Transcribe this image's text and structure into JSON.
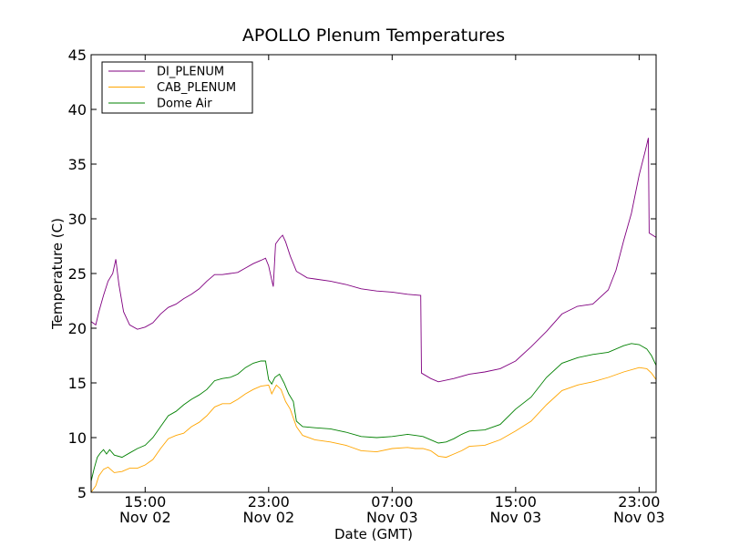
{
  "chart_data": {
    "type": "line",
    "title": "APOLLO Plenum Temperatures",
    "xlabel": "Date (GMT)",
    "ylabel": "Temperature (C)",
    "xlim": [
      11.5,
      48.1
    ],
    "ylim": [
      5,
      45
    ],
    "x_unit": "hours since Nov 02 00:00 GMT",
    "legend_position": "top-left",
    "yticks": [
      {
        "value": 5,
        "label": "5"
      },
      {
        "value": 10,
        "label": "10"
      },
      {
        "value": 15,
        "label": "15"
      },
      {
        "value": 20,
        "label": "20"
      },
      {
        "value": 25,
        "label": "25"
      },
      {
        "value": 30,
        "label": "30"
      },
      {
        "value": 35,
        "label": "35"
      },
      {
        "value": 40,
        "label": "40"
      },
      {
        "value": 45,
        "label": "45"
      }
    ],
    "xticks": [
      {
        "value": 15,
        "label": "15:00",
        "sublabel": "Nov 02"
      },
      {
        "value": 23,
        "label": "23:00",
        "sublabel": "Nov 02"
      },
      {
        "value": 31,
        "label": "07:00",
        "sublabel": "Nov 03"
      },
      {
        "value": 39,
        "label": "15:00",
        "sublabel": "Nov 03"
      },
      {
        "value": 47,
        "label": "23:00",
        "sublabel": "Nov 03"
      }
    ],
    "series": [
      {
        "name": "DI_PLENUM",
        "color": "#800080",
        "points": [
          [
            11.5,
            20.6
          ],
          [
            11.8,
            20.3
          ],
          [
            12.0,
            21.5
          ],
          [
            12.3,
            23.0
          ],
          [
            12.6,
            24.3
          ],
          [
            12.9,
            25.0
          ],
          [
            13.1,
            26.3
          ],
          [
            13.3,
            24.0
          ],
          [
            13.6,
            21.5
          ],
          [
            14.0,
            20.3
          ],
          [
            14.5,
            19.9
          ],
          [
            15.0,
            20.1
          ],
          [
            15.5,
            20.5
          ],
          [
            16.0,
            21.3
          ],
          [
            16.5,
            21.9
          ],
          [
            17.0,
            22.2
          ],
          [
            17.5,
            22.7
          ],
          [
            18.0,
            23.1
          ],
          [
            18.5,
            23.6
          ],
          [
            19.0,
            24.3
          ],
          [
            19.5,
            24.9
          ],
          [
            20.0,
            24.9
          ],
          [
            20.5,
            25.0
          ],
          [
            21.0,
            25.1
          ],
          [
            21.5,
            25.5
          ],
          [
            22.0,
            25.9
          ],
          [
            22.5,
            26.2
          ],
          [
            22.8,
            26.4
          ],
          [
            23.0,
            25.7
          ],
          [
            23.2,
            24.4
          ],
          [
            23.3,
            23.8
          ],
          [
            23.45,
            27.7
          ],
          [
            23.7,
            28.2
          ],
          [
            23.9,
            28.5
          ],
          [
            24.1,
            27.9
          ],
          [
            24.4,
            26.6
          ],
          [
            24.8,
            25.2
          ],
          [
            25.5,
            24.6
          ],
          [
            26.0,
            24.5
          ],
          [
            27.0,
            24.3
          ],
          [
            28.0,
            24.0
          ],
          [
            29.0,
            23.6
          ],
          [
            30.0,
            23.4
          ],
          [
            31.0,
            23.3
          ],
          [
            32.0,
            23.1
          ],
          [
            32.85,
            23.0
          ],
          [
            32.9,
            15.9
          ],
          [
            33.5,
            15.4
          ],
          [
            34.0,
            15.1
          ],
          [
            35.0,
            15.4
          ],
          [
            36.0,
            15.8
          ],
          [
            37.0,
            16.0
          ],
          [
            38.0,
            16.3
          ],
          [
            39.0,
            17.0
          ],
          [
            40.0,
            18.3
          ],
          [
            41.0,
            19.7
          ],
          [
            42.0,
            21.3
          ],
          [
            43.0,
            22.0
          ],
          [
            44.0,
            22.2
          ],
          [
            45.0,
            23.5
          ],
          [
            45.5,
            25.3
          ],
          [
            46.0,
            28.0
          ],
          [
            46.5,
            30.5
          ],
          [
            47.0,
            34.0
          ],
          [
            47.4,
            36.2
          ],
          [
            47.6,
            37.4
          ],
          [
            47.65,
            28.7
          ],
          [
            48.1,
            28.3
          ]
        ]
      },
      {
        "name": "CAB_PLENUM",
        "color": "#ffa500",
        "points": [
          [
            11.5,
            5.0
          ],
          [
            11.8,
            5.6
          ],
          [
            12.0,
            6.5
          ],
          [
            12.3,
            7.1
          ],
          [
            12.6,
            7.3
          ],
          [
            13.0,
            6.8
          ],
          [
            13.5,
            6.9
          ],
          [
            14.0,
            7.2
          ],
          [
            14.5,
            7.2
          ],
          [
            15.0,
            7.5
          ],
          [
            15.5,
            8.0
          ],
          [
            16.0,
            9.0
          ],
          [
            16.5,
            9.9
          ],
          [
            17.0,
            10.2
          ],
          [
            17.5,
            10.4
          ],
          [
            18.0,
            11.0
          ],
          [
            18.5,
            11.4
          ],
          [
            19.0,
            12.0
          ],
          [
            19.5,
            12.8
          ],
          [
            20.0,
            13.1
          ],
          [
            20.5,
            13.1
          ],
          [
            21.0,
            13.5
          ],
          [
            21.5,
            14.0
          ],
          [
            22.0,
            14.4
          ],
          [
            22.5,
            14.7
          ],
          [
            23.0,
            14.8
          ],
          [
            23.2,
            14.0
          ],
          [
            23.5,
            14.8
          ],
          [
            23.8,
            14.4
          ],
          [
            24.1,
            13.3
          ],
          [
            24.4,
            12.6
          ],
          [
            24.8,
            11.0
          ],
          [
            25.2,
            10.2
          ],
          [
            26.0,
            9.8
          ],
          [
            27.0,
            9.6
          ],
          [
            28.0,
            9.3
          ],
          [
            29.0,
            8.8
          ],
          [
            30.0,
            8.7
          ],
          [
            31.0,
            9.0
          ],
          [
            32.0,
            9.1
          ],
          [
            32.5,
            9.0
          ],
          [
            33.0,
            9.0
          ],
          [
            33.5,
            8.8
          ],
          [
            34.0,
            8.3
          ],
          [
            34.5,
            8.2
          ],
          [
            35.0,
            8.5
          ],
          [
            35.5,
            8.8
          ],
          [
            36.0,
            9.2
          ],
          [
            37.0,
            9.3
          ],
          [
            38.0,
            9.8
          ],
          [
            39.0,
            10.6
          ],
          [
            40.0,
            11.5
          ],
          [
            41.0,
            13.0
          ],
          [
            42.0,
            14.3
          ],
          [
            43.0,
            14.8
          ],
          [
            44.0,
            15.1
          ],
          [
            45.0,
            15.5
          ],
          [
            46.0,
            16.0
          ],
          [
            47.0,
            16.4
          ],
          [
            47.5,
            16.3
          ],
          [
            47.8,
            15.9
          ],
          [
            48.1,
            15.3
          ]
        ]
      },
      {
        "name": "Dome Air",
        "color": "#008000",
        "points": [
          [
            11.5,
            6.0
          ],
          [
            11.7,
            7.2
          ],
          [
            11.9,
            8.2
          ],
          [
            12.1,
            8.6
          ],
          [
            12.3,
            8.9
          ],
          [
            12.5,
            8.5
          ],
          [
            12.7,
            8.9
          ],
          [
            13.0,
            8.4
          ],
          [
            13.5,
            8.2
          ],
          [
            14.0,
            8.6
          ],
          [
            14.5,
            9.0
          ],
          [
            15.0,
            9.3
          ],
          [
            15.5,
            10.0
          ],
          [
            16.0,
            11.0
          ],
          [
            16.5,
            12.0
          ],
          [
            17.0,
            12.4
          ],
          [
            17.5,
            13.0
          ],
          [
            18.0,
            13.5
          ],
          [
            18.5,
            13.9
          ],
          [
            19.0,
            14.4
          ],
          [
            19.5,
            15.2
          ],
          [
            20.0,
            15.4
          ],
          [
            20.5,
            15.5
          ],
          [
            21.0,
            15.8
          ],
          [
            21.5,
            16.4
          ],
          [
            22.0,
            16.8
          ],
          [
            22.5,
            17.0
          ],
          [
            22.8,
            17.0
          ],
          [
            23.0,
            15.3
          ],
          [
            23.2,
            14.9
          ],
          [
            23.4,
            15.5
          ],
          [
            23.7,
            15.8
          ],
          [
            24.0,
            15.0
          ],
          [
            24.3,
            14.0
          ],
          [
            24.6,
            13.3
          ],
          [
            24.8,
            11.5
          ],
          [
            25.2,
            11.0
          ],
          [
            26.0,
            10.9
          ],
          [
            27.0,
            10.8
          ],
          [
            28.0,
            10.5
          ],
          [
            29.0,
            10.1
          ],
          [
            30.0,
            10.0
          ],
          [
            31.0,
            10.1
          ],
          [
            32.0,
            10.3
          ],
          [
            32.5,
            10.2
          ],
          [
            33.0,
            10.1
          ],
          [
            33.5,
            9.8
          ],
          [
            34.0,
            9.5
          ],
          [
            34.5,
            9.6
          ],
          [
            35.0,
            9.9
          ],
          [
            35.5,
            10.3
          ],
          [
            36.0,
            10.6
          ],
          [
            37.0,
            10.7
          ],
          [
            38.0,
            11.2
          ],
          [
            39.0,
            12.6
          ],
          [
            40.0,
            13.7
          ],
          [
            41.0,
            15.5
          ],
          [
            42.0,
            16.8
          ],
          [
            43.0,
            17.3
          ],
          [
            44.0,
            17.6
          ],
          [
            45.0,
            17.8
          ],
          [
            46.0,
            18.4
          ],
          [
            46.5,
            18.6
          ],
          [
            47.0,
            18.5
          ],
          [
            47.5,
            18.1
          ],
          [
            47.8,
            17.5
          ],
          [
            48.1,
            16.6
          ]
        ]
      }
    ]
  }
}
